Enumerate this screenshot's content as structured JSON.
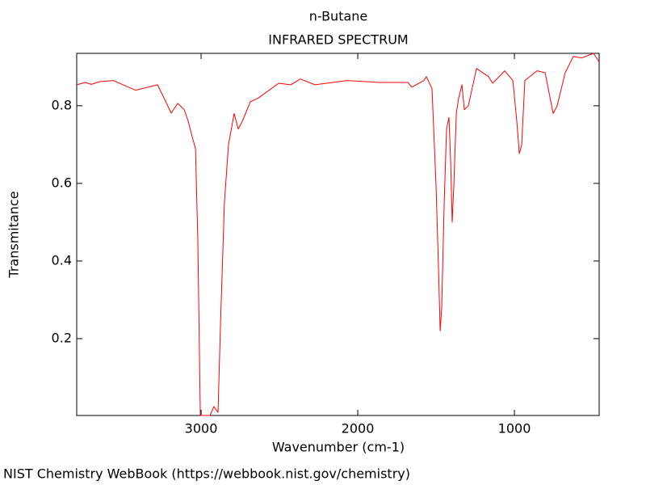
{
  "chart_data": {
    "type": "line",
    "title": "n-Butane",
    "subtitle": "INFRARED SPECTRUM",
    "x_label": "Wavenumber (cm-1)",
    "y_label": "Transmitance",
    "source": "NIST Chemistry WebBook (https://webbook.nist.gov/chemistry)",
    "color": "#ff0000",
    "x": [
      3794,
      3740,
      3700,
      3650,
      3562,
      3418,
      3278,
      3227,
      3191,
      3149,
      3108,
      3082,
      3057,
      3036,
      3021,
      3005,
      2943,
      2918,
      2892,
      2876,
      2851,
      2825,
      2789,
      2763,
      2737,
      2686,
      2634,
      2505,
      2428,
      2366,
      2273,
      2067,
      1861,
      1680,
      1655,
      1577,
      1562,
      1526,
      1500,
      1485,
      1474,
      1464,
      1448,
      1433,
      1418,
      1407,
      1397,
      1387,
      1371,
      1356,
      1335,
      1320,
      1294,
      1242,
      1165,
      1139,
      1062,
      1010,
      985,
      969,
      954,
      933,
      856,
      804,
      753,
      727,
      676,
      624,
      572,
      495,
      459
    ],
    "values": [
      0.854,
      0.86,
      0.855,
      0.862,
      0.865,
      0.84,
      0.854,
      0.812,
      0.781,
      0.806,
      0.79,
      0.76,
      0.72,
      0.69,
      0.45,
      0.002,
      0.002,
      0.025,
      0.01,
      0.24,
      0.55,
      0.7,
      0.78,
      0.74,
      0.76,
      0.81,
      0.82,
      0.858,
      0.854,
      0.869,
      0.854,
      0.865,
      0.86,
      0.86,
      0.848,
      0.865,
      0.875,
      0.844,
      0.594,
      0.385,
      0.22,
      0.28,
      0.55,
      0.74,
      0.77,
      0.656,
      0.5,
      0.594,
      0.78,
      0.82,
      0.854,
      0.79,
      0.8,
      0.896,
      0.875,
      0.858,
      0.89,
      0.865,
      0.76,
      0.677,
      0.698,
      0.865,
      0.89,
      0.885,
      0.78,
      0.8,
      0.885,
      0.927,
      0.923,
      0.935,
      0.913
    ],
    "xlim": [
      3794,
      459
    ],
    "ylim": [
      0.002,
      0.935
    ],
    "xticks": [
      3000,
      2000,
      1000
    ],
    "yticks": [
      0.2,
      0.4,
      0.6,
      0.8
    ]
  }
}
